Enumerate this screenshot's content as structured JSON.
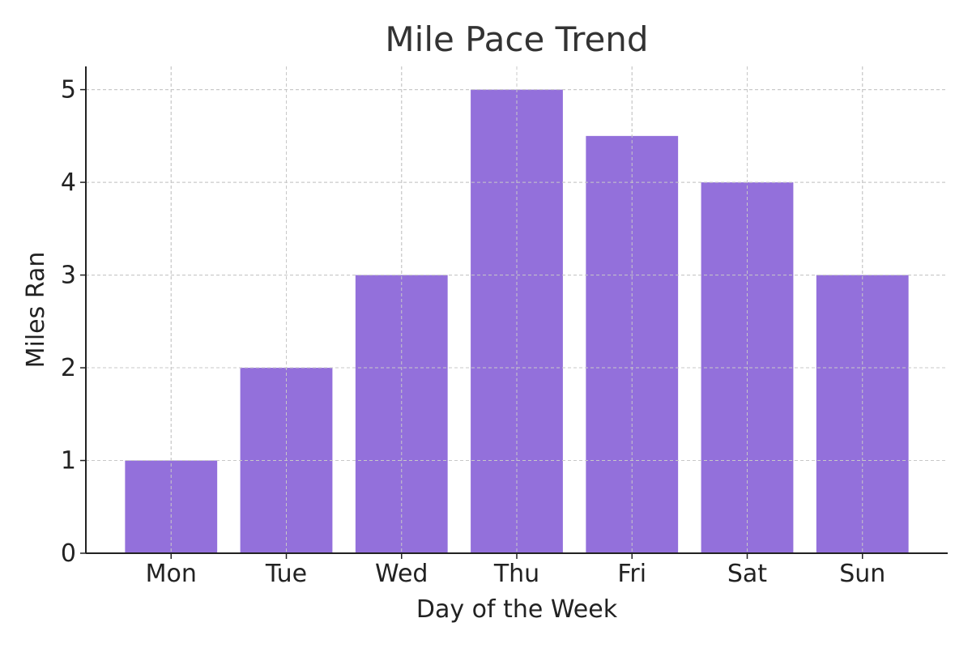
{
  "chart_data": {
    "type": "bar",
    "title": "Mile Pace Trend",
    "xlabel": "Day of the Week",
    "ylabel": "Miles Ran",
    "categories": [
      "Mon",
      "Tue",
      "Wed",
      "Thu",
      "Fri",
      "Sat",
      "Sun"
    ],
    "values": [
      1,
      2,
      3,
      5,
      4.5,
      4,
      3
    ],
    "ylim": [
      0,
      5.25
    ],
    "yticks": [
      0,
      1,
      2,
      3,
      4,
      5
    ],
    "grid": true,
    "bar_color": "#9370db"
  }
}
